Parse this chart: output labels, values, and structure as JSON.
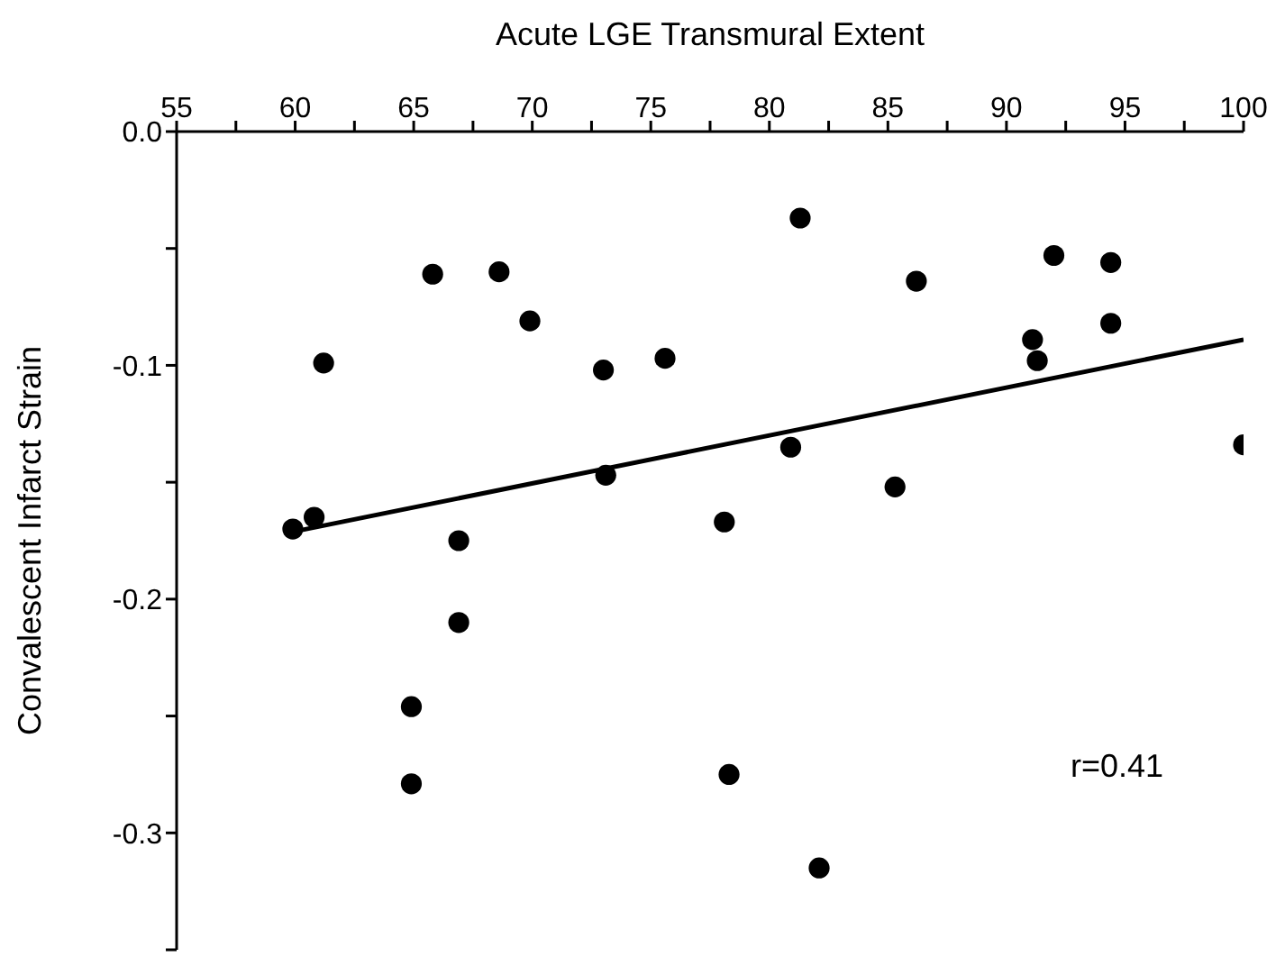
{
  "chart_data": {
    "type": "scatter",
    "xlabel": "Acute LGE Transmural Extent",
    "ylabel": "Convalescent Infarct Strain",
    "xlim": [
      55,
      100
    ],
    "xticks": [
      55,
      {
        "value": 57.5,
        "label": null
      },
      60,
      {
        "value": 62.5,
        "label": null
      },
      65,
      {
        "value": 67.5,
        "label": null
      },
      70,
      {
        "value": 72.5,
        "label": null
      },
      75,
      {
        "value": 77.5,
        "label": null
      },
      80,
      {
        "value": 82.5,
        "label": null
      },
      85,
      {
        "value": 87.5,
        "label": null
      },
      90,
      {
        "value": 92.5,
        "label": null
      },
      95,
      {
        "value": 97.5,
        "label": null
      },
      100
    ],
    "ylim": [
      -0.35,
      0
    ],
    "yticks": [
      {
        "value": 0,
        "label": "0.0"
      },
      {
        "value": -0.05,
        "label": null
      },
      -0.1,
      {
        "value": -0.15,
        "label": null
      },
      -0.2,
      {
        "value": -0.25,
        "label": null
      },
      -0.3,
      {
        "value": -0.35,
        "label": null
      }
    ],
    "series": [
      {
        "color": "#000000",
        "marker": "circle",
        "x": [
          61.2,
          65.8,
          68.6,
          69.9,
          81.3,
          86.2,
          75.6,
          73.0,
          80.9,
          73.1,
          92.0,
          94.4,
          94.4,
          91.1,
          91.3,
          100.0,
          59.9,
          60.8,
          66.9,
          66.9,
          64.9,
          64.9,
          85.3,
          78.1,
          78.3,
          82.1
        ],
        "values": [
          -0.099,
          -0.061,
          -0.06,
          -0.081,
          -0.037,
          -0.064,
          -0.097,
          -0.102,
          -0.135,
          -0.147,
          -0.053,
          -0.056,
          -0.082,
          -0.089,
          -0.098,
          -0.134,
          -0.17,
          -0.165,
          -0.175,
          -0.21,
          -0.246,
          -0.279,
          -0.152,
          -0.167,
          -0.275,
          -0.315
        ]
      },
      {
        "type": "line",
        "color": "#000000",
        "marker": "none",
        "x": [
          60,
          100
        ],
        "values": [
          -0.171,
          -0.089
        ]
      }
    ],
    "annotations": [
      "r=0.41"
    ]
  }
}
